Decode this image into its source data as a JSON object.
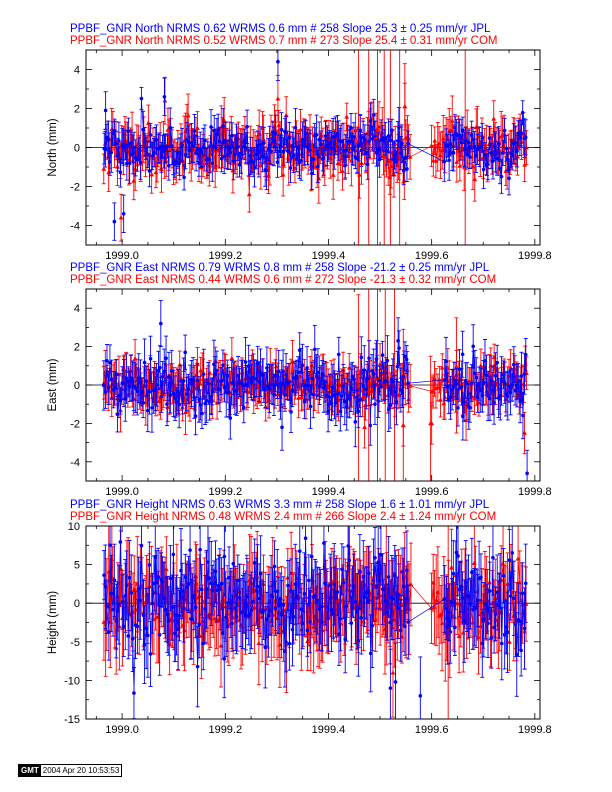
{
  "colors": {
    "jpl": "#0000ff",
    "com": "#ff0000",
    "axis": "#000000",
    "zero_line": "#000000"
  },
  "badge": {
    "logo": "GMT",
    "timestamp": "2004 Apr 20 10:53:53"
  },
  "chart_data": [
    {
      "type": "scatter",
      "component": "north",
      "ylabel": "North (mm)",
      "xlim": [
        1998.93,
        1999.81
      ],
      "ylim": [
        -5,
        5
      ],
      "xticks": [
        1999.0,
        1999.2,
        1999.4,
        1999.6,
        1999.8
      ],
      "xtick_labels": [
        "1999.0",
        "1999.2",
        "1999.4",
        "1999.6",
        "1999.8"
      ],
      "yticks": [
        -4,
        -2,
        0,
        2,
        4
      ],
      "ytick_labels": [
        "-4",
        "-2",
        "0",
        "2",
        "4"
      ],
      "legend": [
        {
          "text": "PPBF_GNR North NRMS 0.62 WRMS  0.6 mm # 258 Slope   25.3 ±  0.25 mm/yr JPL",
          "series": "jpl"
        },
        {
          "text": "PPBF_GNR North NRMS 0.52 WRMS  0.7 mm # 273 Slope   25.4 ±  0.31 mm/yr COM",
          "series": "com"
        }
      ],
      "series": [
        {
          "name": "JPL",
          "marker": "circle",
          "n": 258,
          "wrms": 0.6,
          "slope": 25.3,
          "slope_sigma": 0.25,
          "sigma": 0.8,
          "gap": [
            1999.555,
            1999.625
          ],
          "outliers": [
            [
              1998.985,
              -3.8
            ],
            [
              1999.003,
              -3.4
            ],
            [
              1999.082,
              2.6
            ],
            [
              1999.302,
              4.4
            ],
            [
              1998.968,
              1.9
            ]
          ]
        },
        {
          "name": "COM",
          "marker": "triangle",
          "n": 273,
          "wrms": 0.7,
          "slope": 25.4,
          "slope_sigma": 0.31,
          "sigma": 1.0,
          "gap": [
            1999.56,
            1999.6
          ],
          "outliers": [
            [
              1998.998,
              -3.6
            ],
            [
              1999.302,
              2.5
            ],
            [
              1999.083,
              2.4
            ],
            [
              1999.548,
              2.1
            ],
            [
              1999.46,
              -1.4
            ]
          ],
          "long_bars": [
            [
              1999.458,
              -0.5,
              6.0
            ],
            [
              1999.478,
              0.2,
              6.0
            ],
            [
              1999.495,
              0.0,
              6.0
            ],
            [
              1999.508,
              0.3,
              6.0
            ],
            [
              1999.52,
              -0.2,
              6.0
            ],
            [
              1999.538,
              0.0,
              6.0
            ],
            [
              1999.548,
              2.1,
              2.2
            ],
            [
              1999.665,
              0.3,
              6.0
            ]
          ]
        }
      ]
    },
    {
      "type": "scatter",
      "component": "east",
      "ylabel": "East (mm)",
      "xlim": [
        1998.93,
        1999.81
      ],
      "ylim": [
        -5,
        5
      ],
      "xticks": [
        1999.0,
        1999.2,
        1999.4,
        1999.6,
        1999.8
      ],
      "xtick_labels": [
        "1999.0",
        "1999.2",
        "1999.4",
        "1999.6",
        "1999.8"
      ],
      "yticks": [
        -4,
        -2,
        0,
        2,
        4
      ],
      "ytick_labels": [
        "-4",
        "-2",
        "0",
        "2",
        "4"
      ],
      "legend": [
        {
          "text": "PPBF_GNR East NRMS 0.79 WRMS  0.8 mm # 258 Slope  -21.2 ±  0.25 mm/yr JPL",
          "series": "jpl"
        },
        {
          "text": "PPBF_GNR East NRMS 0.44 WRMS  0.6 mm # 272 Slope  -21.3 ±  0.32 mm/yr COM",
          "series": "com"
        }
      ],
      "series": [
        {
          "name": "JPL",
          "marker": "circle",
          "n": 258,
          "wrms": 0.8,
          "slope": -21.2,
          "slope_sigma": 0.25,
          "sigma": 1.0,
          "gap": [
            1999.555,
            1999.625
          ],
          "outliers": [
            [
              1999.785,
              -4.6
            ],
            [
              1999.075,
              3.2
            ],
            [
              1999.31,
              -2.2
            ],
            [
              1999.535,
              2.3
            ],
            [
              1999.66,
              1.6
            ]
          ]
        },
        {
          "name": "COM",
          "marker": "triangle",
          "n": 272,
          "wrms": 0.6,
          "slope": -21.3,
          "slope_sigma": 0.32,
          "sigma": 0.9,
          "gap": [
            1999.56,
            1999.6
          ],
          "outliers": [
            [
              1999.78,
              -2.5
            ],
            [
              1999.47,
              -2.2
            ],
            [
              1999.545,
              -2.1
            ],
            [
              1999.6,
              -2.0
            ]
          ],
          "long_bars": [
            [
              1999.458,
              -0.8,
              5.5
            ],
            [
              1999.478,
              0.0,
              6.0
            ],
            [
              1999.495,
              0.0,
              6.0
            ],
            [
              1999.51,
              0.2,
              6.0
            ],
            [
              1999.528,
              -0.1,
              6.0
            ],
            [
              1999.545,
              -2.1,
              5.0
            ],
            [
              1999.598,
              -2.0,
              3.5
            ],
            [
              1999.648,
              0.5,
              3.0
            ]
          ]
        }
      ]
    },
    {
      "type": "scatter",
      "component": "height",
      "ylabel": "Height (mm)",
      "xlim": [
        1998.93,
        1999.81
      ],
      "ylim": [
        -15,
        10
      ],
      "xticks": [
        1999.0,
        1999.2,
        1999.4,
        1999.6,
        1999.8
      ],
      "xtick_labels": [
        "1999.0",
        "1999.2",
        "1999.4",
        "1999.6",
        "1999.8"
      ],
      "yticks": [
        -15,
        -10,
        -5,
        0,
        5,
        10
      ],
      "ytick_labels": [
        "-15",
        "-10",
        "-5",
        "0",
        "5",
        "10"
      ],
      "legend": [
        {
          "text": "PPBF_GNR Height NRMS 0.63 WRMS  3.3 mm # 258 Slope    1.6 ±  1.01 mm/yr JPL",
          "series": "jpl"
        },
        {
          "text": "PPBF_GNR Height NRMS 0.48 WRMS  2.4 mm # 266 Slope    2.4 ±  1.24 mm/yr COM",
          "series": "com"
        }
      ],
      "series": [
        {
          "name": "JPL",
          "marker": "circle",
          "n": 258,
          "wrms": 3.3,
          "slope": 1.6,
          "slope_sigma": 1.01,
          "sigma": 4.2,
          "gap": [
            1999.555,
            1999.625
          ],
          "outliers": [
            [
              1999.52,
              -11.0
            ],
            [
              1999.53,
              -10.2
            ],
            [
              1999.578,
              -12.0
            ],
            [
              1999.198,
              -7.2
            ]
          ]
        },
        {
          "name": "COM",
          "marker": "triangle",
          "n": 266,
          "wrms": 2.4,
          "slope": 2.4,
          "slope_sigma": 1.24,
          "sigma": 4.8,
          "gap": [
            1999.56,
            1999.6
          ],
          "outliers": [
            [
              1999.525,
              -9.0
            ]
          ],
          "long_bars": [
            [
              1999.632,
              -3.0,
              15.0
            ],
            [
              1999.512,
              1.0,
              9.0
            ]
          ]
        }
      ]
    }
  ]
}
